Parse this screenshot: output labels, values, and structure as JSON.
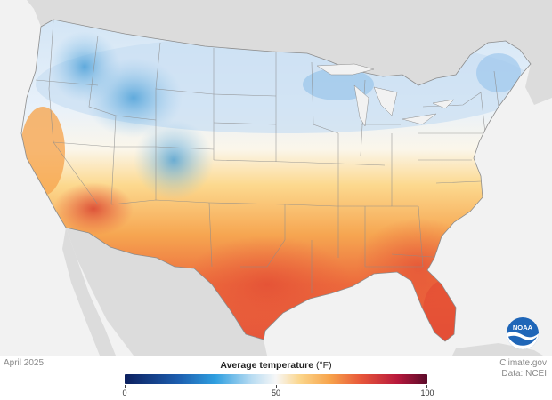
{
  "date_label": "April 2025",
  "credit": {
    "line1": "Climate.gov",
    "line2": "Data: NCEI"
  },
  "legend": {
    "title": "Average temperature",
    "unit": "(°F)",
    "ticks": [
      {
        "value": 0,
        "label": "0"
      },
      {
        "value": 50,
        "label": "50"
      },
      {
        "value": 100,
        "label": "100"
      }
    ],
    "min": 0,
    "max": 100,
    "color_stops": [
      {
        "value": 0,
        "color": "#0c1f5e"
      },
      {
        "value": 18,
        "color": "#1d5fb0"
      },
      {
        "value": 30,
        "color": "#2f9fe0"
      },
      {
        "value": 42,
        "color": "#b9dcf2"
      },
      {
        "value": 50,
        "color": "#f7f7f7"
      },
      {
        "value": 58,
        "color": "#fbd58a"
      },
      {
        "value": 68,
        "color": "#f7a24a"
      },
      {
        "value": 78,
        "color": "#e8573a"
      },
      {
        "value": 90,
        "color": "#b8193c"
      },
      {
        "value": 100,
        "color": "#5a0a2a"
      }
    ]
  },
  "logo": {
    "text": "NOAA",
    "icon": "noaa-logo-icon"
  },
  "colors": {
    "ocean": "#f2f2f2",
    "land_other": "#dedede",
    "state_border": "#8c8c8c"
  }
}
